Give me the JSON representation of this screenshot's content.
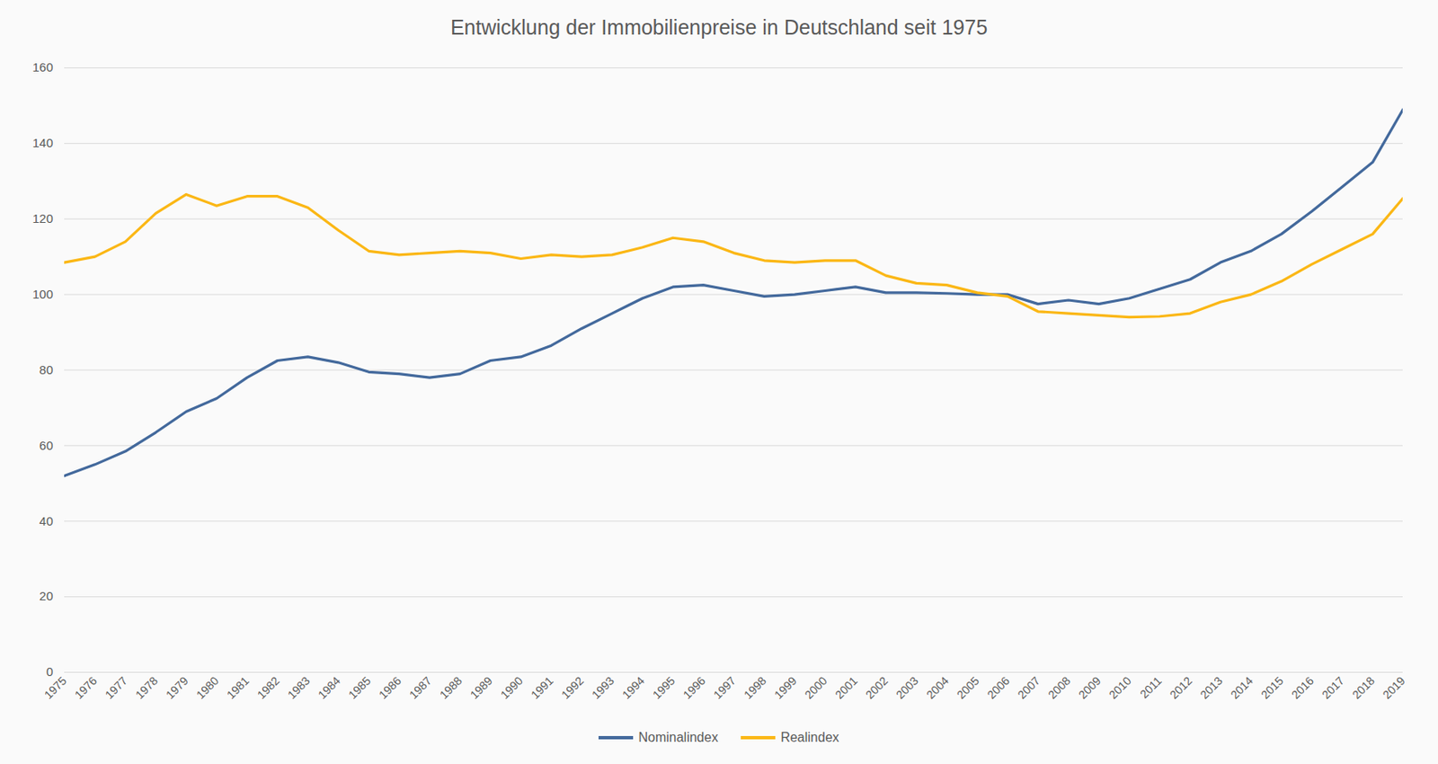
{
  "chart_data": {
    "type": "line",
    "title": "Entwicklung der Immobilienpreise in Deutschland seit 1975",
    "categories": [
      1975,
      1976,
      1977,
      1978,
      1979,
      1980,
      1981,
      1982,
      1983,
      1984,
      1985,
      1986,
      1987,
      1988,
      1989,
      1990,
      1991,
      1992,
      1993,
      1994,
      1995,
      1996,
      1997,
      1998,
      1999,
      2000,
      2001,
      2002,
      2003,
      2004,
      2005,
      2006,
      2007,
      2008,
      2009,
      2010,
      2011,
      2012,
      2013,
      2014,
      2015,
      2016,
      2017,
      2018,
      2019
    ],
    "series": [
      {
        "name": "Nominalindex",
        "color": "#43699c",
        "values": [
          52,
          55,
          58.5,
          63.5,
          69,
          72.5,
          78,
          82.5,
          83.5,
          82,
          79.5,
          79,
          78,
          79,
          82.5,
          83.5,
          86.5,
          91,
          95,
          99,
          102,
          102.5,
          101,
          99.5,
          100,
          101,
          102,
          100.5,
          100.5,
          100.3,
          100,
          100,
          97.5,
          98.5,
          97.5,
          99,
          101.5,
          104,
          108.5,
          111.5,
          116,
          122,
          128.5,
          135,
          149
        ]
      },
      {
        "name": "Realindex",
        "color": "#fbb715",
        "values": [
          108.5,
          110,
          114,
          121.5,
          126.5,
          123.5,
          126,
          126,
          123,
          117,
          111.5,
          110.5,
          111,
          111.5,
          111,
          109.5,
          110.5,
          110,
          110.5,
          112.5,
          115,
          114,
          111,
          109,
          108.5,
          109,
          109,
          105,
          103,
          102.5,
          100.5,
          99.5,
          95.5,
          95,
          94.5,
          94,
          94.2,
          95,
          98,
          100,
          103.5,
          108,
          112,
          116,
          125.5
        ]
      }
    ],
    "ylim": [
      0,
      160
    ],
    "yticks": [
      0,
      20,
      40,
      60,
      80,
      100,
      120,
      140,
      160
    ],
    "grid": true,
    "legend": "bottom"
  }
}
